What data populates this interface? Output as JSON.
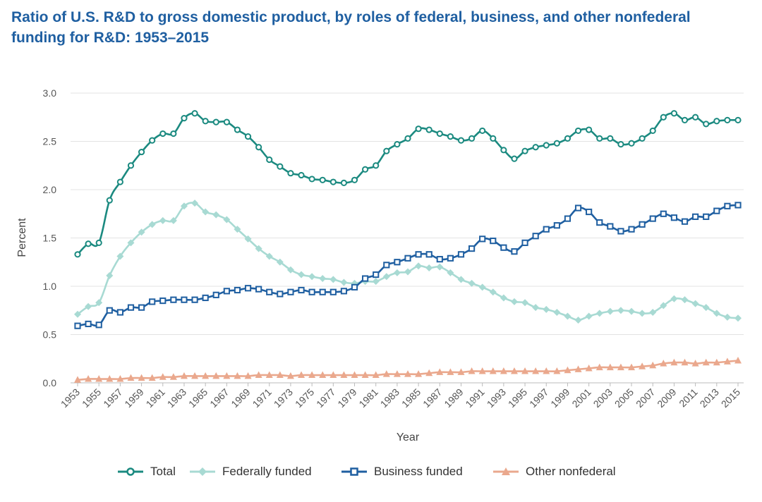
{
  "title": "Ratio of U.S. R&D to gross domestic product, by roles of federal, business, and other nonfederal funding for R&D: 1953–2015",
  "chart_data": {
    "type": "line",
    "title": "Ratio of U.S. R&D to gross domestic product, by roles of federal, business, and other nonfederal funding for R&D: 1953–2015",
    "xlabel": "Year",
    "ylabel": "Percent",
    "ylim": [
      0,
      3.0
    ],
    "yticks": [
      "0.0",
      "0.5",
      "1.0",
      "1.5",
      "2.0",
      "2.5",
      "3.0"
    ],
    "grid": "horizontal",
    "legend_position": "bottom",
    "x": [
      1953,
      1954,
      1955,
      1956,
      1957,
      1958,
      1959,
      1960,
      1961,
      1962,
      1963,
      1964,
      1965,
      1966,
      1967,
      1968,
      1969,
      1970,
      1971,
      1972,
      1973,
      1974,
      1975,
      1976,
      1977,
      1978,
      1979,
      1980,
      1981,
      1982,
      1983,
      1984,
      1985,
      1986,
      1987,
      1988,
      1989,
      1990,
      1991,
      1992,
      1993,
      1994,
      1995,
      1996,
      1997,
      1998,
      1999,
      2000,
      2001,
      2002,
      2003,
      2004,
      2005,
      2006,
      2007,
      2008,
      2009,
      2010,
      2011,
      2012,
      2013,
      2014,
      2015
    ],
    "xtick_labels": [
      "1953",
      "1955",
      "1957",
      "1959",
      "1961",
      "1963",
      "1965",
      "1967",
      "1969",
      "1971",
      "1973",
      "1975",
      "1977",
      "1979",
      "1981",
      "1983",
      "1985",
      "1987",
      "1989",
      "1991",
      "1993",
      "1995",
      "1997",
      "1999",
      "2001",
      "2003",
      "2005",
      "2007",
      "2009",
      "2011",
      "2013",
      "2015"
    ],
    "series": [
      {
        "name": "Total",
        "color": "#1b8a80",
        "marker": "circle",
        "values": [
          1.33,
          1.44,
          1.45,
          1.89,
          2.08,
          2.25,
          2.39,
          2.51,
          2.58,
          2.58,
          2.74,
          2.79,
          2.71,
          2.7,
          2.7,
          2.62,
          2.55,
          2.44,
          2.31,
          2.24,
          2.17,
          2.15,
          2.11,
          2.1,
          2.08,
          2.07,
          2.1,
          2.21,
          2.25,
          2.4,
          2.47,
          2.53,
          2.63,
          2.62,
          2.58,
          2.55,
          2.51,
          2.53,
          2.61,
          2.53,
          2.41,
          2.32,
          2.4,
          2.44,
          2.46,
          2.48,
          2.53,
          2.61,
          2.62,
          2.53,
          2.53,
          2.47,
          2.48,
          2.53,
          2.61,
          2.75,
          2.79,
          2.72,
          2.75,
          2.68,
          2.71,
          2.72,
          2.72
        ]
      },
      {
        "name": "Federally funded",
        "color": "#a8dad3",
        "marker": "diamond",
        "values": [
          0.71,
          0.79,
          0.83,
          1.11,
          1.31,
          1.45,
          1.56,
          1.64,
          1.68,
          1.68,
          1.83,
          1.86,
          1.77,
          1.74,
          1.69,
          1.59,
          1.49,
          1.39,
          1.31,
          1.25,
          1.17,
          1.12,
          1.1,
          1.08,
          1.07,
          1.04,
          1.03,
          1.05,
          1.05,
          1.1,
          1.14,
          1.15,
          1.21,
          1.19,
          1.2,
          1.14,
          1.07,
          1.03,
          0.99,
          0.94,
          0.88,
          0.84,
          0.83,
          0.78,
          0.76,
          0.73,
          0.69,
          0.65,
          0.69,
          0.72,
          0.74,
          0.75,
          0.74,
          0.72,
          0.73,
          0.8,
          0.87,
          0.86,
          0.82,
          0.78,
          0.72,
          0.68,
          0.67
        ]
      },
      {
        "name": "Business funded",
        "color": "#1f5fa1",
        "marker": "square",
        "values": [
          0.59,
          0.61,
          0.6,
          0.75,
          0.73,
          0.78,
          0.78,
          0.84,
          0.85,
          0.86,
          0.86,
          0.86,
          0.88,
          0.91,
          0.95,
          0.96,
          0.98,
          0.97,
          0.94,
          0.92,
          0.94,
          0.96,
          0.94,
          0.94,
          0.94,
          0.95,
          0.99,
          1.08,
          1.12,
          1.22,
          1.25,
          1.29,
          1.33,
          1.33,
          1.28,
          1.29,
          1.33,
          1.39,
          1.49,
          1.47,
          1.4,
          1.36,
          1.45,
          1.52,
          1.59,
          1.63,
          1.7,
          1.81,
          1.77,
          1.66,
          1.62,
          1.57,
          1.59,
          1.64,
          1.7,
          1.75,
          1.71,
          1.67,
          1.72,
          1.72,
          1.78,
          1.83,
          1.84
        ]
      },
      {
        "name": "Other nonfederal",
        "color": "#eaa88d",
        "marker": "triangle",
        "values": [
          0.03,
          0.04,
          0.04,
          0.04,
          0.04,
          0.05,
          0.05,
          0.05,
          0.06,
          0.06,
          0.07,
          0.07,
          0.07,
          0.07,
          0.07,
          0.07,
          0.07,
          0.08,
          0.08,
          0.08,
          0.07,
          0.08,
          0.08,
          0.08,
          0.08,
          0.08,
          0.08,
          0.08,
          0.08,
          0.09,
          0.09,
          0.09,
          0.09,
          0.1,
          0.11,
          0.11,
          0.11,
          0.12,
          0.12,
          0.12,
          0.12,
          0.12,
          0.12,
          0.12,
          0.12,
          0.12,
          0.13,
          0.14,
          0.15,
          0.16,
          0.16,
          0.16,
          0.16,
          0.17,
          0.18,
          0.2,
          0.21,
          0.21,
          0.2,
          0.21,
          0.21,
          0.22,
          0.23
        ]
      }
    ]
  }
}
